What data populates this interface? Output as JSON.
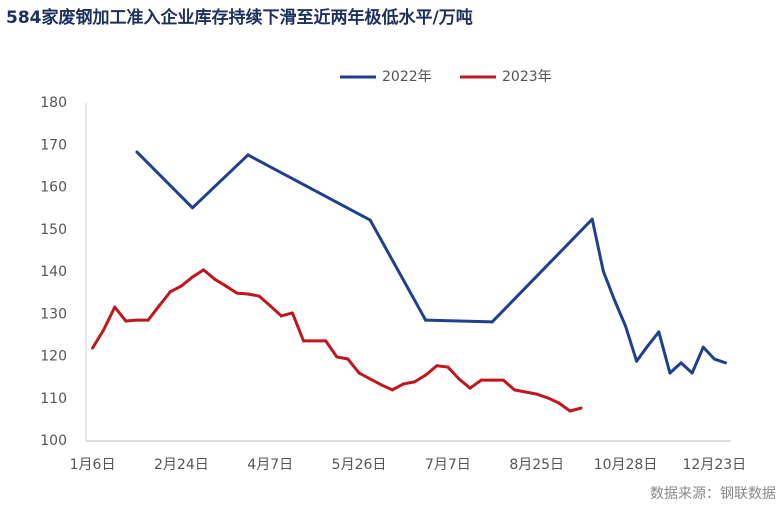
{
  "chart_data": {
    "type": "line",
    "title": "584家废钢加工准入企业库存持续下滑至近两年极低水平/万吨",
    "source": "数据来源：钢联数据",
    "categories": [
      "1月6日",
      null,
      null,
      null,
      null,
      null,
      null,
      null,
      "2月24日",
      null,
      null,
      null,
      null,
      null,
      null,
      null,
      "4月7日",
      null,
      null,
      null,
      null,
      null,
      null,
      null,
      "5月26日",
      null,
      null,
      null,
      null,
      null,
      null,
      null,
      "7月7日",
      null,
      null,
      null,
      null,
      null,
      null,
      null,
      "8月25日",
      null,
      null,
      null,
      null,
      null,
      null,
      null,
      "10月28日",
      null,
      null,
      null,
      null,
      null,
      null,
      null,
      "12月23日",
      null
    ],
    "series": [
      {
        "name": "2022年",
        "color": "#1f3f8f",
        "values": [
          null,
          null,
          null,
          null,
          168.4,
          null,
          null,
          null,
          null,
          155.2,
          null,
          null,
          null,
          null,
          167.7,
          null,
          null,
          null,
          null,
          null,
          null,
          null,
          null,
          null,
          null,
          152.3,
          null,
          null,
          null,
          null,
          128.6,
          null,
          null,
          null,
          null,
          null,
          128.2,
          null,
          null,
          null,
          null,
          null,
          null,
          null,
          null,
          152.5,
          140.2,
          133.4,
          127.2,
          118.9,
          122.5,
          125.8,
          116.1,
          118.5,
          116.1,
          122.2,
          119.4,
          118.5
        ]
      },
      {
        "name": "2023年",
        "color": "#c0171e",
        "values": [
          122,
          126.3,
          131.7,
          128.4,
          128.6,
          128.6,
          132,
          135.3,
          136.7,
          138.8,
          140.5,
          138.3,
          136.7,
          135,
          134.8,
          134.3,
          132,
          129.6,
          130.3,
          123.7,
          123.7,
          123.7,
          119.9,
          119.4,
          116.1,
          114.7,
          113.3,
          112.1,
          113.5,
          114,
          115.6,
          117.8,
          117.5,
          114.7,
          112.5,
          114.4,
          114.4,
          114.4,
          112.1,
          111.6,
          111.1,
          110.2,
          109,
          107.1,
          107.8,
          null,
          null,
          null,
          null,
          null,
          null,
          null,
          null,
          null,
          null,
          null,
          null,
          null
        ]
      }
    ],
    "ylim": [
      100,
      180
    ],
    "yticks": [
      100,
      110,
      120,
      130,
      140,
      150,
      160,
      170,
      180
    ],
    "grid": false
  }
}
